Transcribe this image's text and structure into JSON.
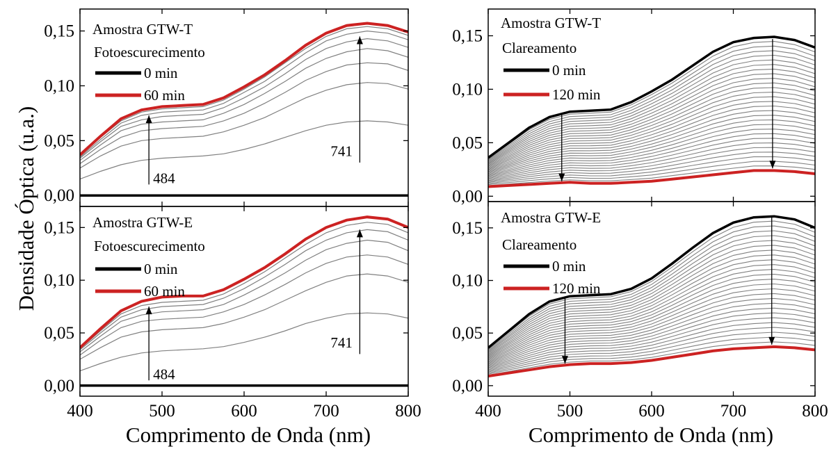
{
  "figure": {
    "ylabel": "Densidade Óptica (u.a.)",
    "xlabel": "Comprimento de Onda (nm)"
  },
  "colors": {
    "initial": "#000000",
    "final": "#cc2222",
    "intermediate": "#808080"
  },
  "chart_data": [
    {
      "type": "line",
      "sample": "Amostra GTW-T",
      "process": "Fotoescurecimento",
      "xlim": [
        400,
        800
      ],
      "ylim": [
        -0.01,
        0.17
      ],
      "yticks": [
        "0,00",
        "0,05",
        "0,10",
        "0,15"
      ],
      "xticks": [
        "400",
        "500",
        "600",
        "700",
        "800"
      ],
      "legend": [
        {
          "label": "0 min",
          "color": "#000000"
        },
        {
          "label": "60 min",
          "color": "#cc2222"
        }
      ],
      "x": [
        400,
        425,
        450,
        475,
        500,
        525,
        550,
        575,
        600,
        625,
        650,
        675,
        700,
        725,
        750,
        775,
        800
      ],
      "series": [
        {
          "name": "0 min",
          "role": "initial",
          "values": [
            0.0,
            0.0,
            0.0,
            0.0,
            0.0,
            0.0,
            0.0,
            0.0,
            0.0,
            0.0,
            0.0,
            0.0,
            0.0,
            0.0,
            0.0,
            0.0,
            0.0
          ]
        },
        {
          "role": "intermediate",
          "values": [
            0.015,
            0.022,
            0.028,
            0.032,
            0.034,
            0.035,
            0.036,
            0.038,
            0.042,
            0.047,
            0.053,
            0.059,
            0.064,
            0.067,
            0.068,
            0.067,
            0.064
          ]
        },
        {
          "role": "intermediate",
          "values": [
            0.025,
            0.036,
            0.045,
            0.05,
            0.052,
            0.053,
            0.054,
            0.058,
            0.064,
            0.071,
            0.08,
            0.089,
            0.096,
            0.101,
            0.103,
            0.102,
            0.097
          ]
        },
        {
          "role": "intermediate",
          "values": [
            0.029,
            0.042,
            0.053,
            0.059,
            0.061,
            0.062,
            0.063,
            0.068,
            0.075,
            0.084,
            0.094,
            0.105,
            0.113,
            0.119,
            0.121,
            0.12,
            0.114
          ]
        },
        {
          "role": "intermediate",
          "values": [
            0.032,
            0.046,
            0.059,
            0.065,
            0.067,
            0.068,
            0.069,
            0.075,
            0.083,
            0.093,
            0.104,
            0.116,
            0.125,
            0.131,
            0.134,
            0.132,
            0.126
          ]
        },
        {
          "role": "intermediate",
          "values": [
            0.034,
            0.049,
            0.063,
            0.069,
            0.072,
            0.073,
            0.074,
            0.08,
            0.089,
            0.099,
            0.111,
            0.124,
            0.134,
            0.14,
            0.143,
            0.141,
            0.135
          ]
        },
        {
          "role": "intermediate",
          "values": [
            0.035,
            0.051,
            0.066,
            0.073,
            0.076,
            0.077,
            0.078,
            0.084,
            0.094,
            0.104,
            0.117,
            0.13,
            0.141,
            0.147,
            0.15,
            0.148,
            0.142
          ]
        },
        {
          "role": "intermediate",
          "values": [
            0.036,
            0.053,
            0.068,
            0.076,
            0.079,
            0.08,
            0.081,
            0.087,
            0.097,
            0.108,
            0.121,
            0.134,
            0.145,
            0.152,
            0.154,
            0.152,
            0.146
          ]
        },
        {
          "name": "60 min",
          "role": "final",
          "values": [
            0.037,
            0.054,
            0.07,
            0.078,
            0.081,
            0.082,
            0.083,
            0.089,
            0.099,
            0.11,
            0.123,
            0.137,
            0.148,
            0.155,
            0.157,
            0.155,
            0.149
          ]
        }
      ],
      "annotations": [
        {
          "text": "484",
          "x": 484,
          "y_from": 0.01,
          "y_to": 0.073,
          "direction": "up"
        },
        {
          "text": "741",
          "x": 741,
          "y_from": 0.03,
          "y_to": 0.145,
          "direction": "up"
        }
      ]
    },
    {
      "type": "line",
      "sample": "Amostra GTW-T",
      "process": "Clareamento",
      "xlim": [
        400,
        800
      ],
      "ylim": [
        -0.005,
        0.175
      ],
      "yticks": [
        "0,00",
        "0,05",
        "0,10",
        "0,15"
      ],
      "xticks": [
        "400",
        "500",
        "600",
        "700",
        "800"
      ],
      "legend": [
        {
          "label": "0 min",
          "color": "#000000"
        },
        {
          "label": "120 min",
          "color": "#cc2222"
        }
      ],
      "x": [
        400,
        425,
        450,
        475,
        500,
        525,
        550,
        575,
        600,
        625,
        650,
        675,
        700,
        725,
        750,
        775,
        800
      ],
      "series": [
        {
          "name": "0 min",
          "role": "initial",
          "values": [
            0.036,
            0.05,
            0.064,
            0.074,
            0.079,
            0.08,
            0.081,
            0.088,
            0.098,
            0.109,
            0.122,
            0.135,
            0.144,
            0.148,
            0.149,
            0.146,
            0.139
          ]
        },
        {
          "name": "120 min",
          "role": "final",
          "values": [
            0.009,
            0.01,
            0.011,
            0.012,
            0.013,
            0.012,
            0.012,
            0.013,
            0.014,
            0.016,
            0.018,
            0.02,
            0.022,
            0.024,
            0.024,
            0.023,
            0.021
          ]
        }
      ],
      "intermediate_curves": 28,
      "annotations": [
        {
          "text": "",
          "x": 490,
          "y_from": 0.076,
          "y_to": 0.014,
          "direction": "down"
        },
        {
          "text": "",
          "x": 748,
          "y_from": 0.147,
          "y_to": 0.026,
          "direction": "down"
        }
      ]
    },
    {
      "type": "line",
      "sample": "Amostra GTW-E",
      "process": "Fotoescurecimento",
      "xlim": [
        400,
        800
      ],
      "ylim": [
        -0.01,
        0.17
      ],
      "yticks": [
        "0,00",
        "0,05",
        "0,10",
        "0,15"
      ],
      "xticks": [
        "400",
        "500",
        "600",
        "700",
        "800"
      ],
      "legend": [
        {
          "label": "0 min",
          "color": "#000000"
        },
        {
          "label": "60 min",
          "color": "#cc2222"
        }
      ],
      "x": [
        400,
        425,
        450,
        475,
        500,
        525,
        550,
        575,
        600,
        625,
        650,
        675,
        700,
        725,
        750,
        775,
        800
      ],
      "series": [
        {
          "name": "0 min",
          "role": "initial",
          "values": [
            0.0,
            0.0,
            0.0,
            0.0,
            0.0,
            0.0,
            0.0,
            0.0,
            0.0,
            0.0,
            0.0,
            0.0,
            0.0,
            0.0,
            0.0,
            0.0,
            0.0
          ]
        },
        {
          "role": "intermediate",
          "values": [
            0.014,
            0.021,
            0.027,
            0.031,
            0.033,
            0.034,
            0.035,
            0.037,
            0.041,
            0.046,
            0.052,
            0.059,
            0.064,
            0.068,
            0.069,
            0.068,
            0.064
          ]
        },
        {
          "role": "intermediate",
          "values": [
            0.025,
            0.036,
            0.046,
            0.051,
            0.053,
            0.054,
            0.055,
            0.059,
            0.065,
            0.072,
            0.081,
            0.09,
            0.098,
            0.104,
            0.106,
            0.104,
            0.098
          ]
        },
        {
          "role": "intermediate",
          "values": [
            0.029,
            0.043,
            0.055,
            0.061,
            0.063,
            0.064,
            0.065,
            0.07,
            0.077,
            0.086,
            0.096,
            0.107,
            0.116,
            0.122,
            0.124,
            0.122,
            0.115
          ]
        },
        {
          "role": "intermediate",
          "values": [
            0.032,
            0.047,
            0.061,
            0.067,
            0.07,
            0.071,
            0.072,
            0.077,
            0.086,
            0.096,
            0.107,
            0.119,
            0.129,
            0.135,
            0.138,
            0.136,
            0.128
          ]
        },
        {
          "role": "intermediate",
          "values": [
            0.034,
            0.05,
            0.065,
            0.072,
            0.075,
            0.076,
            0.077,
            0.083,
            0.092,
            0.103,
            0.115,
            0.128,
            0.138,
            0.145,
            0.148,
            0.146,
            0.138
          ]
        },
        {
          "role": "intermediate",
          "values": [
            0.035,
            0.052,
            0.068,
            0.076,
            0.079,
            0.08,
            0.081,
            0.087,
            0.097,
            0.108,
            0.121,
            0.134,
            0.145,
            0.152,
            0.155,
            0.153,
            0.145
          ]
        },
        {
          "name": "60 min",
          "role": "final",
          "values": [
            0.036,
            0.054,
            0.071,
            0.08,
            0.084,
            0.085,
            0.085,
            0.091,
            0.101,
            0.112,
            0.125,
            0.139,
            0.15,
            0.157,
            0.16,
            0.158,
            0.15
          ]
        }
      ],
      "annotations": [
        {
          "text": "484",
          "x": 484,
          "y_from": 0.005,
          "y_to": 0.075,
          "direction": "up"
        },
        {
          "text": "741",
          "x": 741,
          "y_from": 0.03,
          "y_to": 0.148,
          "direction": "up"
        }
      ]
    },
    {
      "type": "line",
      "sample": "Amostra GTW-E",
      "process": "Clareamento",
      "xlim": [
        400,
        800
      ],
      "ylim": [
        -0.01,
        0.175
      ],
      "yticks": [
        "0,00",
        "0,05",
        "0,10",
        "0,15"
      ],
      "xticks": [
        "400",
        "500",
        "600",
        "700",
        "800"
      ],
      "legend": [
        {
          "label": "0 min",
          "color": "#000000"
        },
        {
          "label": "120 min",
          "color": "#cc2222"
        }
      ],
      "x": [
        400,
        425,
        450,
        475,
        500,
        525,
        550,
        575,
        600,
        625,
        650,
        675,
        700,
        725,
        750,
        775,
        800
      ],
      "series": [
        {
          "name": "0 min",
          "role": "initial",
          "values": [
            0.036,
            0.052,
            0.068,
            0.08,
            0.085,
            0.086,
            0.087,
            0.092,
            0.102,
            0.116,
            0.131,
            0.145,
            0.155,
            0.16,
            0.161,
            0.158,
            0.15
          ]
        },
        {
          "name": "120 min",
          "role": "final",
          "values": [
            0.009,
            0.012,
            0.015,
            0.018,
            0.02,
            0.021,
            0.021,
            0.022,
            0.024,
            0.027,
            0.03,
            0.033,
            0.035,
            0.036,
            0.037,
            0.036,
            0.034
          ]
        }
      ],
      "intermediate_curves": 26,
      "annotations": [
        {
          "text": "",
          "x": 494,
          "y_from": 0.083,
          "y_to": 0.021,
          "direction": "down"
        },
        {
          "text": "",
          "x": 747,
          "y_from": 0.16,
          "y_to": 0.039,
          "direction": "down"
        }
      ]
    }
  ]
}
